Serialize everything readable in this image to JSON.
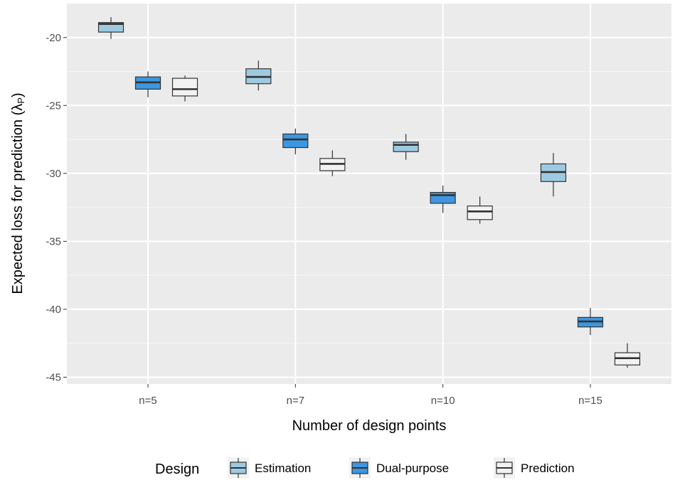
{
  "chart_data": {
    "type": "boxplot",
    "xlabel": "Number of design points",
    "ylabel": "Expected loss for prediction (λP)",
    "ylabel_main": "Expected loss for prediction (λ",
    "ylabel_sub": "P",
    "ylabel_close": ")",
    "categories": [
      "n=5",
      "n=7",
      "n=10",
      "n=15"
    ],
    "ylim": [
      -45.5,
      -17.5
    ],
    "yticks": [
      -20,
      -25,
      -30,
      -35,
      -40,
      -45
    ],
    "ytick_labels": [
      "-20",
      "-25",
      "-30",
      "-35",
      "-40",
      "-45"
    ],
    "grid": true,
    "legend": {
      "title": "Design",
      "position": "bottom",
      "entries": [
        "Estimation",
        "Dual-purpose",
        "Prediction"
      ]
    },
    "series": [
      {
        "name": "Estimation",
        "color": "#9ecae1",
        "boxes": [
          {
            "category": "n=5",
            "min": -20.1,
            "q1": -19.6,
            "median": -19.0,
            "q3": -18.9,
            "max": -18.5
          },
          {
            "category": "n=7",
            "min": -23.9,
            "q1": -23.4,
            "median": -22.9,
            "q3": -22.3,
            "max": -21.7
          },
          {
            "category": "n=10",
            "min": -29.0,
            "q1": -28.4,
            "median": -27.9,
            "q3": -27.7,
            "max": -27.1
          },
          {
            "category": "n=15",
            "min": -31.7,
            "q1": -30.6,
            "median": -29.9,
            "q3": -29.3,
            "max": -28.5
          }
        ]
      },
      {
        "name": "Dual-purpose",
        "color": "#3d97e0",
        "boxes": [
          {
            "category": "n=5",
            "min": -24.4,
            "q1": -23.8,
            "median": -23.3,
            "q3": -22.9,
            "max": -22.5
          },
          {
            "category": "n=7",
            "min": -28.6,
            "q1": -28.1,
            "median": -27.5,
            "q3": -27.1,
            "max": -26.7
          },
          {
            "category": "n=10",
            "min": -32.9,
            "q1": -32.2,
            "median": -31.6,
            "q3": -31.4,
            "max": -30.9
          },
          {
            "category": "n=15",
            "min": -41.9,
            "q1": -41.3,
            "median": -40.9,
            "q3": -40.6,
            "max": -39.9
          }
        ]
      },
      {
        "name": "Prediction",
        "color": "#f2f2f2",
        "boxes": [
          {
            "category": "n=5",
            "min": -24.7,
            "q1": -24.3,
            "median": -23.8,
            "q3": -23.0,
            "max": -22.8
          },
          {
            "category": "n=7",
            "min": -30.2,
            "q1": -29.8,
            "median": -29.3,
            "q3": -28.9,
            "max": -28.3
          },
          {
            "category": "n=10",
            "min": -33.7,
            "q1": -33.4,
            "median": -32.8,
            "q3": -32.4,
            "max": -31.7
          },
          {
            "category": "n=15",
            "min": -44.3,
            "q1": -44.1,
            "median": -43.6,
            "q3": -43.2,
            "max": -42.5
          }
        ]
      }
    ]
  }
}
